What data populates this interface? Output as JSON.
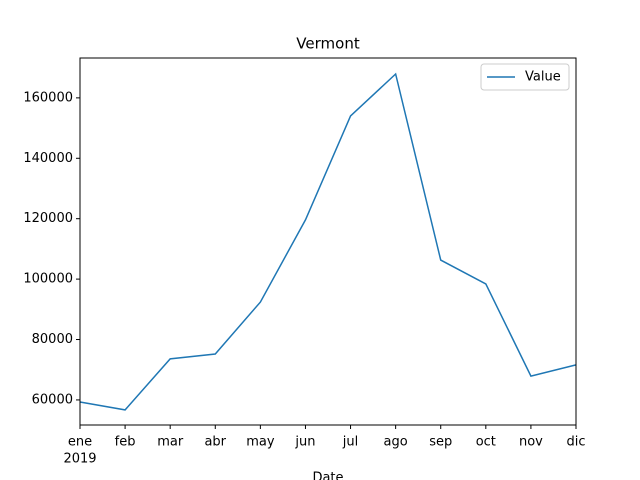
{
  "chart_data": {
    "type": "line",
    "title": "Vermont",
    "x_label": "Date",
    "year_label": "2019",
    "categories": [
      "ene",
      "feb",
      "mar",
      "abr",
      "may",
      "jun",
      "jul",
      "ago",
      "sep",
      "oct",
      "nov",
      "dic"
    ],
    "series": [
      {
        "name": "Value",
        "color": "#1f77b4",
        "values": [
          59300,
          56700,
          73600,
          75200,
          92400,
          119600,
          154000,
          167900,
          106300,
          98400,
          67900,
          71600
        ]
      }
    ],
    "ylim": [
      51700,
      173200
    ],
    "yticks": [
      60000,
      80000,
      100000,
      120000,
      140000,
      160000
    ],
    "legend": "upper right"
  }
}
